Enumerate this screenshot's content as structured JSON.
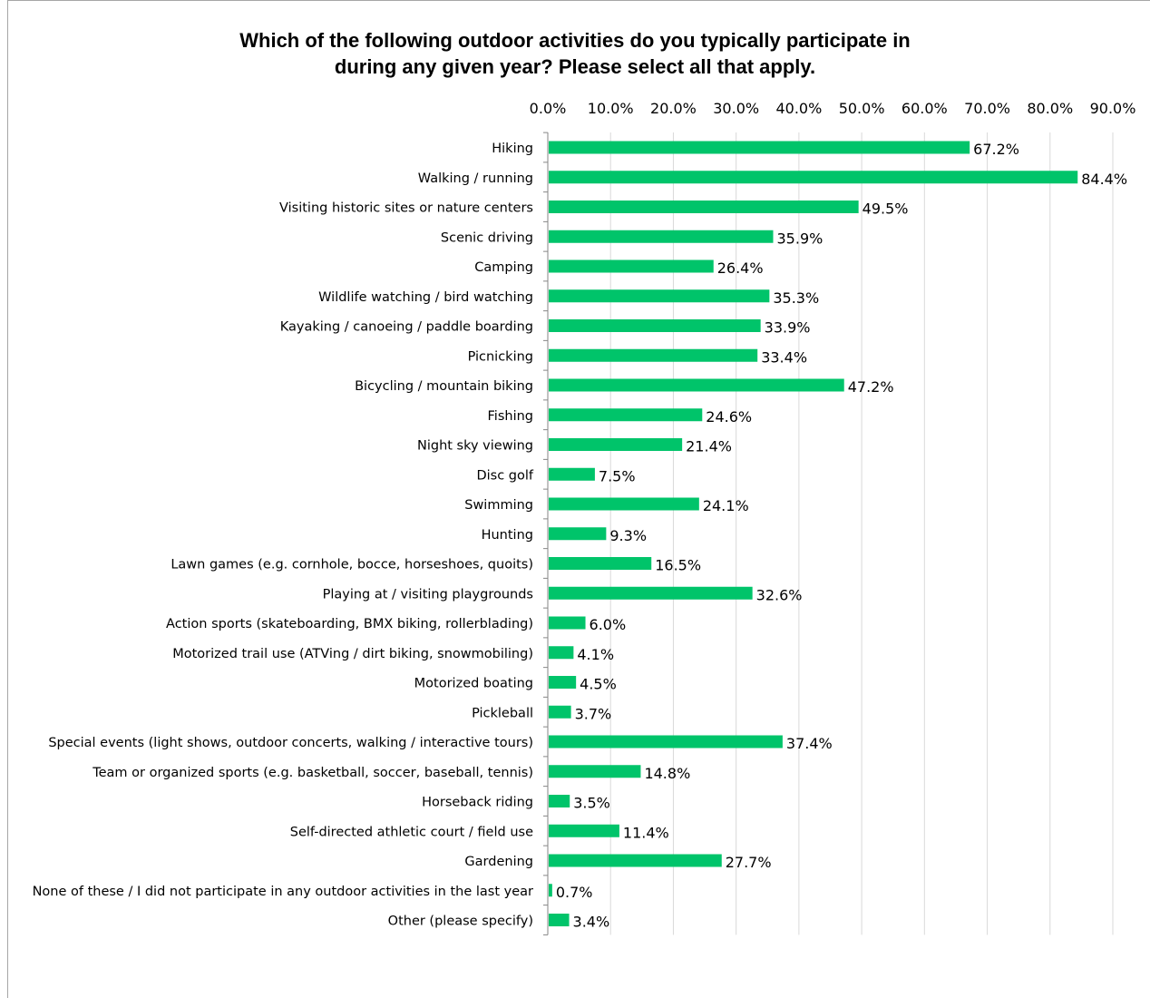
{
  "chart_data": {
    "type": "bar",
    "orientation": "horizontal",
    "title_lines": [
      "Which of the following outdoor activities do you typically participate in",
      "during any given year? Please select all that apply."
    ],
    "xlim": [
      0,
      90
    ],
    "x_ticks": [
      "0.0%",
      "10.0%",
      "20.0%",
      "30.0%",
      "40.0%",
      "50.0%",
      "60.0%",
      "70.0%",
      "80.0%",
      "90.0%"
    ],
    "grid": "vertical",
    "bar_color": "#00c46a",
    "categories": [
      "Hiking",
      "Walking / running",
      "Visiting historic sites or nature centers",
      "Scenic driving",
      "Camping",
      "Wildlife watching / bird watching",
      "Kayaking / canoeing / paddle boarding",
      "Picnicking",
      "Bicycling / mountain biking",
      "Fishing",
      "Night sky viewing",
      "Disc golf",
      "Swimming",
      "Hunting",
      "Lawn games (e.g. cornhole, bocce, horseshoes, quoits)",
      "Playing at / visiting playgrounds",
      "Action sports (skateboarding, BMX biking, rollerblading)",
      "Motorized trail use (ATVing / dirt biking, snowmobiling)",
      "Motorized boating",
      "Pickleball",
      "Special events (light shows, outdoor concerts, walking / interactive tours)",
      "Team or organized sports (e.g. basketball, soccer, baseball, tennis)",
      "Horseback riding",
      "Self-directed athletic court / field use",
      "Gardening",
      "None of these / I did not participate in any outdoor activities in the last year",
      "Other (please specify)"
    ],
    "values": [
      67.2,
      84.4,
      49.5,
      35.9,
      26.4,
      35.3,
      33.9,
      33.4,
      47.2,
      24.6,
      21.4,
      7.5,
      24.1,
      9.3,
      16.5,
      32.6,
      6.0,
      4.1,
      4.5,
      3.7,
      37.4,
      14.8,
      3.5,
      11.4,
      27.7,
      0.7,
      3.4
    ],
    "data_labels": [
      "67.2%",
      "84.4%",
      "49.5%",
      "35.9%",
      "26.4%",
      "35.3%",
      "33.9%",
      "33.4%",
      "47.2%",
      "24.6%",
      "21.4%",
      "7.5%",
      "24.1%",
      "9.3%",
      "16.5%",
      "32.6%",
      "6.0%",
      "4.1%",
      "4.5%",
      "3.7%",
      "37.4%",
      "14.8%",
      "3.5%",
      "11.4%",
      "27.7%",
      "0.7%",
      "3.4%"
    ]
  }
}
